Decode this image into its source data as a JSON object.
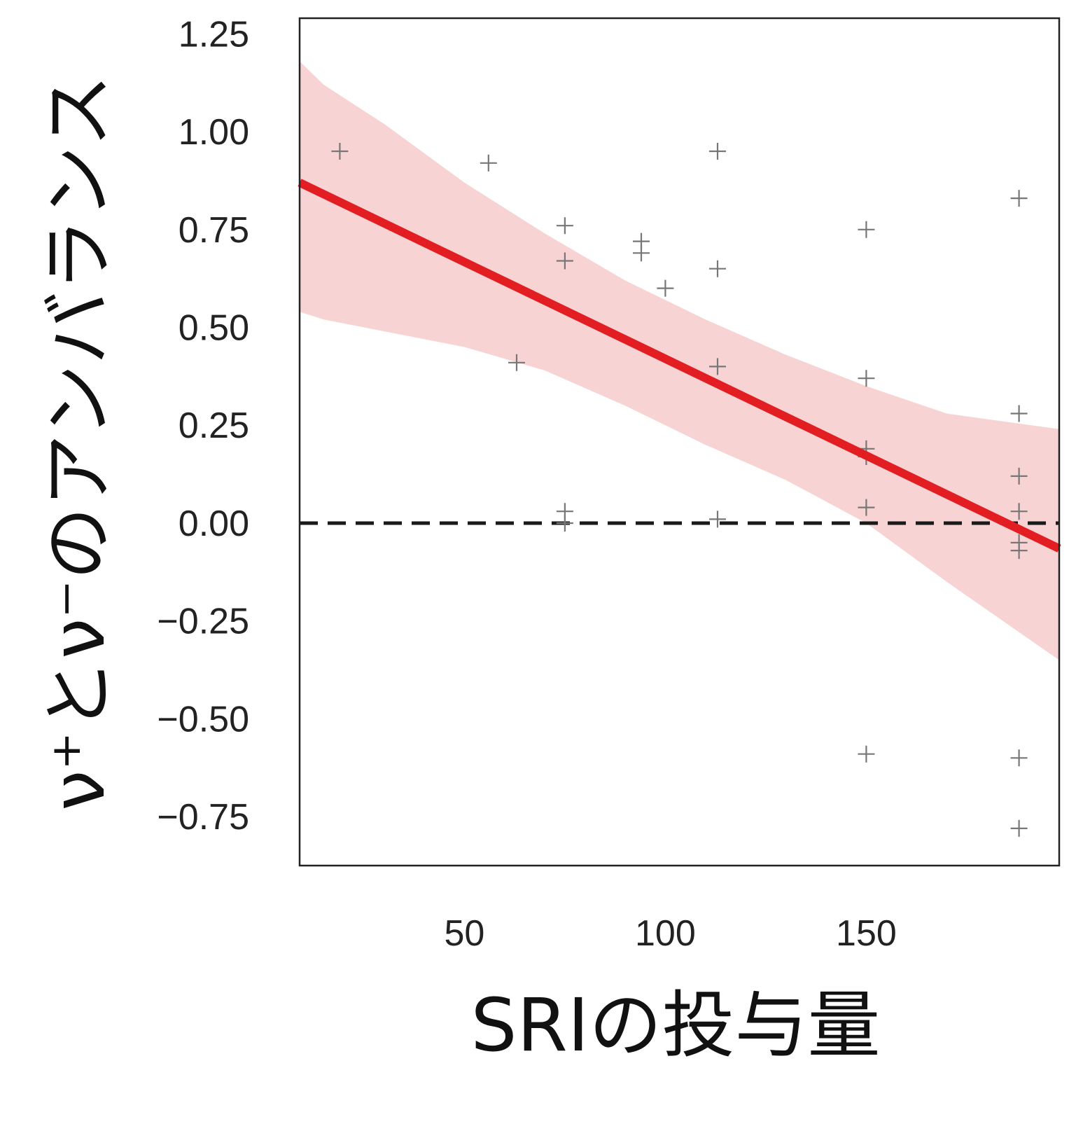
{
  "chart_data": {
    "type": "scatter",
    "xlabel": "SRIの投与量",
    "ylabel": "ν⁺とν⁻のアンバランス",
    "xlim": [
      9,
      198
    ],
    "ylim": [
      -0.875,
      1.29
    ],
    "x_ticks": [
      50,
      100,
      150
    ],
    "x_tick_labels": [
      "50",
      "100",
      "150"
    ],
    "y_ticks": [
      1.25,
      1.0,
      0.75,
      0.5,
      0.25,
      0.0,
      -0.25,
      -0.5,
      -0.75
    ],
    "y_tick_labels": [
      "1.25",
      "1.00",
      "0.75",
      "0.50",
      "0.25",
      "0.00",
      "−0.25",
      "−0.50",
      "−0.75"
    ],
    "grid": false,
    "points": [
      {
        "x": 19,
        "y": 0.95
      },
      {
        "x": 56,
        "y": 0.92
      },
      {
        "x": 63,
        "y": 0.41
      },
      {
        "x": 75,
        "y": 0.76
      },
      {
        "x": 75,
        "y": 0.67
      },
      {
        "x": 75,
        "y": 0.03
      },
      {
        "x": 75,
        "y": 0.0
      },
      {
        "x": 94,
        "y": 0.72
      },
      {
        "x": 94,
        "y": 0.69
      },
      {
        "x": 100,
        "y": 0.6
      },
      {
        "x": 113,
        "y": 0.95
      },
      {
        "x": 113,
        "y": 0.65
      },
      {
        "x": 113,
        "y": 0.4
      },
      {
        "x": 113,
        "y": 0.01
      },
      {
        "x": 150,
        "y": 0.75
      },
      {
        "x": 150,
        "y": 0.37
      },
      {
        "x": 150,
        "y": 0.19
      },
      {
        "x": 150,
        "y": 0.17
      },
      {
        "x": 150,
        "y": 0.04
      },
      {
        "x": 150,
        "y": -0.59
      },
      {
        "x": 188,
        "y": 0.83
      },
      {
        "x": 188,
        "y": 0.28
      },
      {
        "x": 188,
        "y": 0.12
      },
      {
        "x": 188,
        "y": 0.03
      },
      {
        "x": 188,
        "y": -0.05
      },
      {
        "x": 188,
        "y": -0.07
      },
      {
        "x": 188,
        "y": -0.6
      },
      {
        "x": 188,
        "y": -0.78
      }
    ],
    "regression_line": {
      "x": [
        9,
        198
      ],
      "y": [
        0.87,
        -0.065
      ]
    },
    "confidence_band": {
      "x": [
        9,
        15,
        30,
        50,
        70,
        90,
        110,
        130,
        150,
        170,
        198
      ],
      "upper": [
        1.18,
        1.12,
        1.02,
        0.87,
        0.74,
        0.62,
        0.52,
        0.43,
        0.35,
        0.28,
        0.24
      ],
      "lower": [
        0.54,
        0.52,
        0.49,
        0.45,
        0.39,
        0.3,
        0.2,
        0.11,
        0.0,
        -0.15,
        -0.35
      ]
    },
    "reference_line": {
      "y": 0.0,
      "style": "dashed"
    },
    "colors": {
      "line": "#e31e22",
      "band": "#f8d3d4",
      "points": "#777777",
      "reference": "#1a1a1a",
      "frame": "#222222"
    }
  }
}
